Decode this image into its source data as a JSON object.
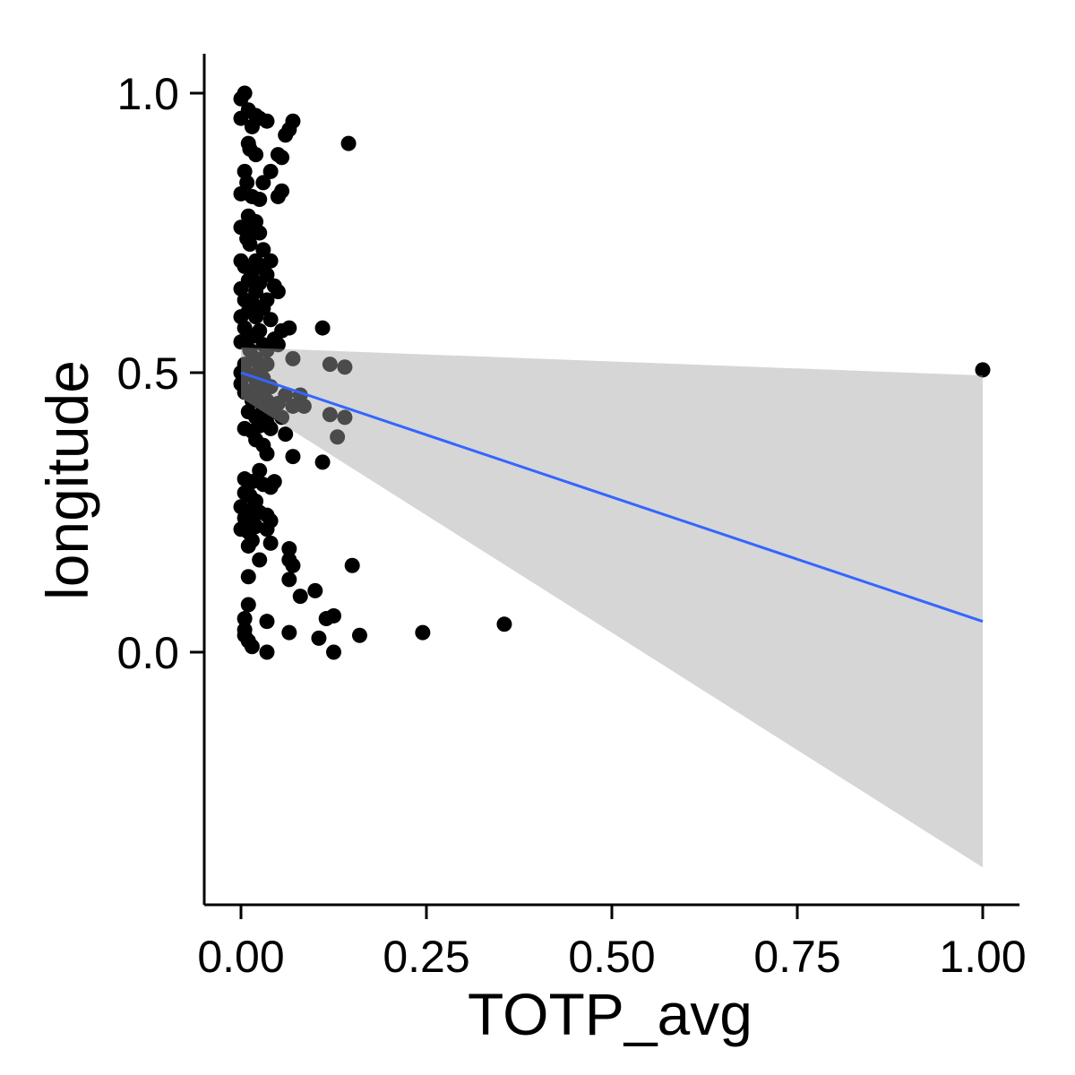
{
  "chart_data": {
    "type": "scatter",
    "title": "",
    "xlabel": "TOTP_avg",
    "ylabel": "longitude",
    "xlim": [
      -0.1,
      1.05
    ],
    "ylim": [
      -0.45,
      1.07
    ],
    "x_ticks": [
      0.0,
      0.25,
      0.5,
      0.75,
      1.0
    ],
    "x_tick_labels": [
      "0.00",
      "0.25",
      "0.50",
      "0.75",
      "1.00"
    ],
    "y_ticks": [
      0.0,
      0.5,
      1.0
    ],
    "y_tick_labels": [
      "0.0",
      "0.5",
      "1.0"
    ],
    "grid": false,
    "legend": "none",
    "colors": {
      "points": "#000000",
      "fit_line": "#3366ff",
      "confidence_band": "#d6d6d6"
    },
    "fit": {
      "method": "linear",
      "x": [
        0.0,
        1.0
      ],
      "y": [
        0.5,
        0.055
      ],
      "ci_lower": [
        0.455,
        -0.385
      ],
      "ci_upper": [
        0.545,
        0.495
      ]
    },
    "points": [
      [
        0.0,
        0.99
      ],
      [
        0.005,
        1.0
      ],
      [
        0.01,
        0.97
      ],
      [
        0.0,
        0.955
      ],
      [
        0.02,
        0.96
      ],
      [
        0.015,
        0.94
      ],
      [
        0.025,
        0.955
      ],
      [
        0.035,
        0.95
      ],
      [
        0.07,
        0.95
      ],
      [
        0.065,
        0.935
      ],
      [
        0.06,
        0.925
      ],
      [
        0.145,
        0.91
      ],
      [
        0.01,
        0.91
      ],
      [
        0.012,
        0.9
      ],
      [
        0.02,
        0.89
      ],
      [
        0.05,
        0.89
      ],
      [
        0.055,
        0.885
      ],
      [
        0.005,
        0.86
      ],
      [
        0.04,
        0.86
      ],
      [
        0.008,
        0.84
      ],
      [
        0.03,
        0.84
      ],
      [
        0.0,
        0.82
      ],
      [
        0.015,
        0.815
      ],
      [
        0.025,
        0.81
      ],
      [
        0.05,
        0.815
      ],
      [
        0.055,
        0.825
      ],
      [
        0.01,
        0.78
      ],
      [
        0.02,
        0.77
      ],
      [
        0.0,
        0.76
      ],
      [
        0.015,
        0.755
      ],
      [
        0.025,
        0.75
      ],
      [
        0.008,
        0.74
      ],
      [
        0.012,
        0.73
      ],
      [
        0.03,
        0.72
      ],
      [
        0.0,
        0.7
      ],
      [
        0.02,
        0.7
      ],
      [
        0.04,
        0.7
      ],
      [
        0.005,
        0.69
      ],
      [
        0.03,
        0.69
      ],
      [
        0.015,
        0.68
      ],
      [
        0.035,
        0.675
      ],
      [
        0.01,
        0.665
      ],
      [
        0.025,
        0.66
      ],
      [
        0.045,
        0.655
      ],
      [
        0.0,
        0.65
      ],
      [
        0.02,
        0.645
      ],
      [
        0.05,
        0.645
      ],
      [
        0.005,
        0.63
      ],
      [
        0.015,
        0.625
      ],
      [
        0.035,
        0.63
      ],
      [
        0.01,
        0.61
      ],
      [
        0.03,
        0.615
      ],
      [
        0.0,
        0.6
      ],
      [
        0.02,
        0.6
      ],
      [
        0.04,
        0.595
      ],
      [
        0.005,
        0.58
      ],
      [
        0.025,
        0.575
      ],
      [
        0.055,
        0.575
      ],
      [
        0.065,
        0.58
      ],
      [
        0.11,
        0.58
      ],
      [
        0.015,
        0.565
      ],
      [
        0.045,
        0.56
      ],
      [
        0.0,
        0.555
      ],
      [
        0.03,
        0.55
      ],
      [
        0.05,
        0.55
      ],
      [
        0.012,
        0.54
      ],
      [
        0.035,
        0.54
      ],
      [
        0.07,
        0.525
      ],
      [
        0.02,
        0.525
      ],
      [
        0.005,
        0.515
      ],
      [
        0.025,
        0.51
      ],
      [
        0.035,
        0.515
      ],
      [
        0.12,
        0.515
      ],
      [
        0.14,
        0.51
      ],
      [
        1.0,
        0.505
      ],
      [
        0.0,
        0.5
      ],
      [
        0.015,
        0.495
      ],
      [
        0.03,
        0.49
      ],
      [
        0.0,
        0.48
      ],
      [
        0.02,
        0.475
      ],
      [
        0.04,
        0.475
      ],
      [
        0.005,
        0.465
      ],
      [
        0.025,
        0.465
      ],
      [
        0.06,
        0.46
      ],
      [
        0.08,
        0.46
      ],
      [
        0.015,
        0.45
      ],
      [
        0.035,
        0.45
      ],
      [
        0.05,
        0.445
      ],
      [
        0.07,
        0.44
      ],
      [
        0.085,
        0.44
      ],
      [
        0.03,
        0.435
      ],
      [
        0.01,
        0.43
      ],
      [
        0.045,
        0.43
      ],
      [
        0.12,
        0.425
      ],
      [
        0.14,
        0.42
      ],
      [
        0.02,
        0.42
      ],
      [
        0.055,
        0.42
      ],
      [
        0.035,
        0.41
      ],
      [
        0.025,
        0.405
      ],
      [
        0.005,
        0.4
      ],
      [
        0.04,
        0.4
      ],
      [
        0.015,
        0.395
      ],
      [
        0.06,
        0.39
      ],
      [
        0.13,
        0.385
      ],
      [
        0.02,
        0.38
      ],
      [
        0.03,
        0.37
      ],
      [
        0.035,
        0.355
      ],
      [
        0.07,
        0.35
      ],
      [
        0.11,
        0.34
      ],
      [
        0.025,
        0.325
      ],
      [
        0.005,
        0.31
      ],
      [
        0.015,
        0.305
      ],
      [
        0.045,
        0.305
      ],
      [
        0.03,
        0.3
      ],
      [
        0.04,
        0.295
      ],
      [
        0.005,
        0.285
      ],
      [
        0.012,
        0.28
      ],
      [
        0.02,
        0.27
      ],
      [
        0.0,
        0.26
      ],
      [
        0.015,
        0.255
      ],
      [
        0.025,
        0.25
      ],
      [
        0.035,
        0.245
      ],
      [
        0.005,
        0.24
      ],
      [
        0.01,
        0.235
      ],
      [
        0.04,
        0.235
      ],
      [
        0.02,
        0.225
      ],
      [
        0.0,
        0.22
      ],
      [
        0.035,
        0.22
      ],
      [
        0.01,
        0.215
      ],
      [
        0.015,
        0.2
      ],
      [
        0.04,
        0.195
      ],
      [
        0.01,
        0.19
      ],
      [
        0.065,
        0.185
      ],
      [
        0.025,
        0.165
      ],
      [
        0.065,
        0.165
      ],
      [
        0.07,
        0.155
      ],
      [
        0.15,
        0.155
      ],
      [
        0.01,
        0.135
      ],
      [
        0.065,
        0.13
      ],
      [
        0.1,
        0.11
      ],
      [
        0.08,
        0.1
      ],
      [
        0.01,
        0.085
      ],
      [
        0.125,
        0.065
      ],
      [
        0.115,
        0.06
      ],
      [
        0.005,
        0.06
      ],
      [
        0.035,
        0.055
      ],
      [
        0.355,
        0.05
      ],
      [
        0.005,
        0.04
      ],
      [
        0.065,
        0.035
      ],
      [
        0.245,
        0.035
      ],
      [
        0.005,
        0.03
      ],
      [
        0.16,
        0.03
      ],
      [
        0.105,
        0.025
      ],
      [
        0.01,
        0.02
      ],
      [
        0.015,
        0.01
      ],
      [
        0.035,
        0.0
      ],
      [
        0.125,
        0.0
      ]
    ]
  }
}
